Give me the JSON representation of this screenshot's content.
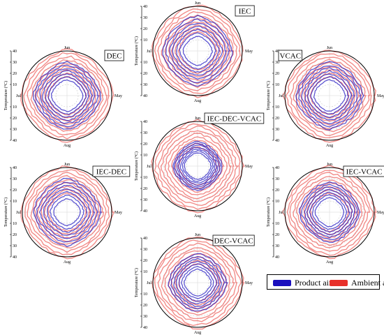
{
  "chart_data": {
    "type": "polar",
    "colors": {
      "product_air": "#1a0fbe",
      "ambient_air": "#e8302a"
    },
    "angular_labels": [
      "Jun",
      "May",
      "Aug",
      "Jul"
    ],
    "radial_ticks": [
      "40",
      "30",
      "20",
      "10",
      "10",
      "20",
      "30",
      "40"
    ],
    "radial_axis_label": "Temperature (°C)",
    "legend": [
      "Product air",
      "Ambient air"
    ],
    "panels": [
      {
        "label": "IEC",
        "product_air_range": [
          13,
          31
        ],
        "ambient_air_range": [
          17,
          41
        ]
      },
      {
        "label": "DEC",
        "product_air_range": [
          14,
          30
        ],
        "ambient_air_range": [
          17,
          41
        ]
      },
      {
        "label": "VCAC",
        "product_air_range": [
          14,
          30
        ],
        "ambient_air_range": [
          17,
          41
        ]
      },
      {
        "label": "IEC-DEC-VCAC",
        "product_air_range": [
          12,
          22
        ],
        "ambient_air_range": [
          17,
          41
        ]
      },
      {
        "label": "IEC-DEC",
        "product_air_range": [
          12,
          30
        ],
        "ambient_air_range": [
          17,
          41
        ]
      },
      {
        "label": "IEC-VCAC",
        "product_air_range": [
          13,
          27
        ],
        "ambient_air_range": [
          17,
          41
        ]
      },
      {
        "label": "DEC-VCAC",
        "product_air_range": [
          12,
          26
        ],
        "ambient_air_range": [
          17,
          41
        ]
      }
    ]
  }
}
